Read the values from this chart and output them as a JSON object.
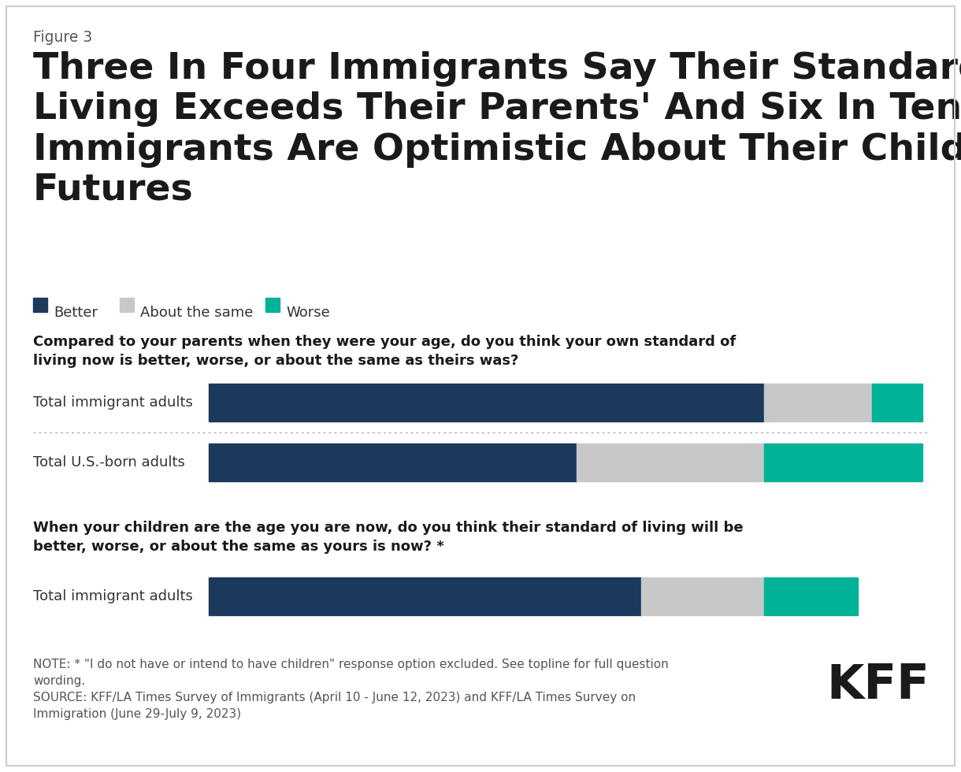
{
  "figure_label": "Figure 3",
  "title_line1": "Three In Four Immigrants Say Their Standard Of",
  "title_line2": "Living Exceeds Their Parents' And Six In Ten",
  "title_line3": "Immigrants Are Optimistic About Their Children's",
  "title_line4": "Futures",
  "legend_items": [
    {
      "label": "Better",
      "color": "#1b3a5c"
    },
    {
      "label": "About the same",
      "color": "#c8c8c8"
    },
    {
      "label": "Worse",
      "color": "#00b398"
    }
  ],
  "question1": "Compared to your parents when they were your age, do you think your own standard of\nliving now is better, worse, or about the same as theirs was?",
  "question2": "When your children are the age you are now, do you think their standard of living will be\nbetter, worse, or about the same as yours is now? *",
  "bars": [
    {
      "label": "Total immigrant adults",
      "better": 77,
      "same": 15,
      "worse": 7
    },
    {
      "label": "Total U.S.-born adults",
      "better": 51,
      "same": 26,
      "worse": 22
    },
    {
      "label": "Total immigrant adults",
      "better": 60,
      "same": 17,
      "worse": 13
    }
  ],
  "color_better": "#1b3a5c",
  "color_same": "#c8c8c8",
  "color_worse": "#00b398",
  "note_line1": "NOTE: * \"I do not have or intend to have children\" response option excluded. See topline for full question",
  "note_line2": "wording.",
  "note_line3": "SOURCE: KFF/LA Times Survey of Immigrants (April 10 - June 12, 2023) and KFF/LA Times Survey on",
  "note_line4": "Immigration (June 29-July 9, 2023)",
  "bg_color": "#ffffff",
  "border_color": "#cccccc",
  "label_color": "#333333",
  "text_dark": "#ffffff",
  "text_mid": "#333333"
}
